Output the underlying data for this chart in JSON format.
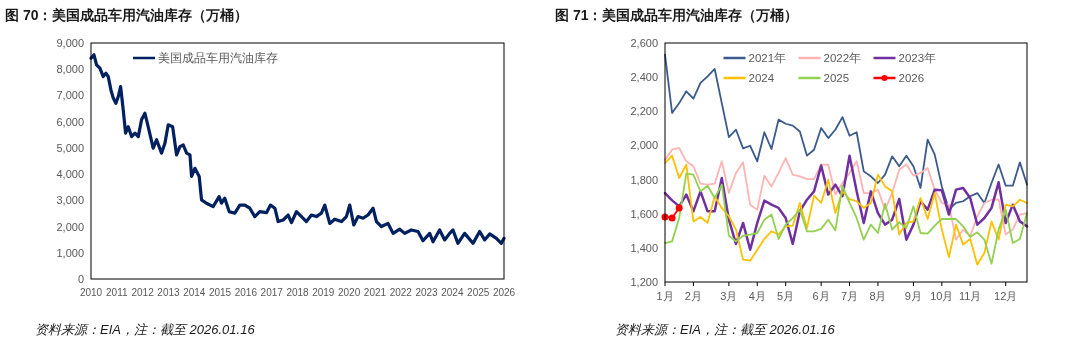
{
  "chart_data": [
    {
      "type": "line",
      "title": "图 70：美国成品车用汽油库存（万桶）",
      "legend": "top left",
      "xlim": [
        "2010",
        "2026"
      ],
      "xticks": [
        "2010",
        "2011",
        "2012",
        "2013",
        "2014",
        "2015",
        "2016",
        "2017",
        "2018",
        "2019",
        "2020",
        "2021",
        "2022",
        "2023",
        "2024",
        "2025",
        "2026"
      ],
      "ylim": [
        0,
        9000
      ],
      "yticks": [
        0,
        {
          "value": 1000,
          "label": "1,000"
        },
        {
          "value": 2000,
          "label": "2,000"
        },
        {
          "value": 3000,
          "label": "3,000"
        },
        {
          "value": 4000,
          "label": "4,000"
        },
        {
          "value": 5000,
          "label": "5,000"
        },
        {
          "value": 6000,
          "label": "6,000"
        },
        {
          "value": 7000,
          "label": "7,000"
        },
        {
          "value": 8000,
          "label": "8,000"
        },
        {
          "value": 9000,
          "label": "9,000"
        }
      ],
      "series": [
        {
          "name": "美国成品车用汽油库存",
          "color": "#002060",
          "x": [
            "2010-01-01",
            "2010-02-12",
            "2010-03-20",
            "2010-05-07",
            "2010-06-23",
            "2010-07-31",
            "2010-09-02",
            "2010-10-10",
            "2010-11-12",
            "2010-12-19",
            "2011-01-22",
            "2011-02-24",
            "2011-04-02",
            "2011-05-05",
            "2011-06-12",
            "2011-07-29",
            "2011-09-15",
            "2011-11-01",
            "2011-12-17",
            "2012-02-03",
            "2012-03-20",
            "2012-05-30",
            "2012-07-17",
            "2012-09-25",
            "2012-11-12",
            "2012-12-29",
            "2013-03-01",
            "2013-04-26",
            "2013-06-12",
            "2013-07-29",
            "2013-09-15",
            "2013-11-01",
            "2013-11-24",
            "2014-01-10",
            "2014-03-12",
            "2014-04-14",
            "2014-06-23",
            "2014-09-25",
            "2014-12-19",
            "2015-01-22",
            "2015-03-09",
            "2015-05-10",
            "2015-07-29",
            "2015-10-08",
            "2015-12-17",
            "2016-02-26",
            "2016-05-07",
            "2016-07-17",
            "2016-10-19",
            "2016-12-15",
            "2017-02-15",
            "2017-04-02",
            "2017-06-12",
            "2017-08-21",
            "2017-10-08",
            "2017-12-17",
            "2018-02-26",
            "2018-05-07",
            "2018-07-17",
            "2018-09-25",
            "2018-12-05",
            "2019-01-22",
            "2019-04-02",
            "2019-06-12",
            "2019-09-15",
            "2019-11-24",
            "2020-01-10",
            "2020-03-07",
            "2020-05-07",
            "2020-07-17",
            "2020-09-25",
            "2020-12-05",
            "2021-01-22",
            "2021-04-02",
            "2021-07-05",
            "2021-09-15",
            "2021-12-17",
            "2022-02-26",
            "2022-05-30",
            "2022-09-02",
            "2022-11-12",
            "2023-02-15",
            "2023-04-02",
            "2023-07-05",
            "2023-09-15",
            "2023-11-24",
            "2024-01-10",
            "2024-03-20",
            "2024-06-23",
            "2024-10-19",
            "2025-01-22",
            "2025-04-02",
            "2025-06-12",
            "2025-09-15",
            "2025-11-24",
            "2026-01-01"
          ],
          "values": [
            8420,
            8550,
            8170,
            8040,
            7720,
            7850,
            7720,
            7210,
            6900,
            6700,
            6960,
            7340,
            6450,
            5560,
            5810,
            5430,
            5560,
            5430,
            6070,
            6320,
            5810,
            4990,
            5310,
            4800,
            5180,
            5880,
            5810,
            4730,
            5050,
            5110,
            4800,
            4730,
            3910,
            4220,
            3910,
            3020,
            2890,
            2760,
            3140,
            2890,
            3080,
            2570,
            2510,
            2820,
            2820,
            2700,
            2380,
            2570,
            2530,
            2820,
            2700,
            2190,
            2250,
            2440,
            2150,
            2570,
            2380,
            2190,
            2440,
            2380,
            2510,
            2820,
            2120,
            2280,
            2190,
            2380,
            2820,
            2060,
            2380,
            2320,
            2440,
            2700,
            2190,
            2000,
            2120,
            1740,
            1900,
            1740,
            1870,
            1810,
            1460,
            1740,
            1420,
            1870,
            1490,
            1740,
            1870,
            1360,
            1740,
            1360,
            1810,
            1490,
            1720,
            1550,
            1360,
            1550
          ]
        }
      ],
      "annotations": [
        "资料来源：EIA，注：截至 2026.01.16"
      ]
    },
    {
      "type": "line",
      "title": "图 71：美国成品车用汽油库存（万桶）",
      "legend": "top",
      "categories": [
        "1月",
        null,
        null,
        null,
        "2月",
        null,
        null,
        null,
        null,
        "3月",
        null,
        null,
        null,
        "4月",
        null,
        null,
        null,
        "5月",
        null,
        null,
        null,
        null,
        "6月",
        null,
        null,
        null,
        "7月",
        null,
        null,
        null,
        "8月",
        null,
        null,
        null,
        null,
        "9月",
        null,
        null,
        null,
        "10月",
        null,
        null,
        null,
        "11月",
        null,
        null,
        null,
        null,
        "12月",
        null,
        null,
        null
      ],
      "ylim": [
        1200,
        2600
      ],
      "yticks": [
        {
          "value": 1200,
          "label": "1,200"
        },
        {
          "value": 1400,
          "label": "1,400"
        },
        {
          "value": 1600,
          "label": "1,600"
        },
        {
          "value": 1800,
          "label": "1,800"
        },
        {
          "value": 2000,
          "label": "2,000"
        },
        {
          "value": 2200,
          "label": "2,200"
        },
        {
          "value": 2400,
          "label": "2,400"
        },
        {
          "value": 2600,
          "label": "2,600"
        }
      ],
      "series": [
        {
          "name": "2021年",
          "color": "#3b5a8c",
          "values": [
            2532,
            2190,
            2248,
            2317,
            2274,
            2366,
            2405,
            2448,
            2248,
            2049,
            2092,
            1983,
            1998,
            1907,
            2077,
            1979,
            2151,
            2127,
            2116,
            2082,
            1940,
            1975,
            2102,
            2043,
            2092,
            2166,
            2057,
            2077,
            1848,
            1819,
            1780,
            1829,
            1936,
            1878,
            1940,
            1878,
            1751,
            2034,
            1946,
            1760,
            1624,
            1663,
            1673,
            1702,
            1721,
            1663,
            1780,
            1888,
            1764,
            1764,
            1901,
            1770
          ]
        },
        {
          "name": "2022年",
          "color": "#ffb3b3",
          "values": [
            1916,
            1975,
            1985,
            1907,
            1878,
            1776,
            1770,
            1776,
            1907,
            1721,
            1839,
            1901,
            1653,
            1624,
            1823,
            1760,
            1839,
            1926,
            1829,
            1819,
            1803,
            1803,
            1888,
            1888,
            1712,
            1780,
            1839,
            1907,
            1721,
            1721,
            1741,
            1624,
            1721,
            1858,
            1888,
            1823,
            1839,
            1868,
            1741,
            1663,
            1653,
            1448,
            1507,
            1468,
            1585,
            1663,
            1682,
            1682,
            1478,
            1507,
            1595,
            1604
          ]
        },
        {
          "name": "2023年",
          "color": "#7030a0",
          "values": [
            1721,
            1678,
            1643,
            1712,
            1614,
            1731,
            1614,
            1614,
            1809,
            1565,
            1423,
            1546,
            1389,
            1546,
            1677,
            1653,
            1634,
            1575,
            1423,
            1614,
            1682,
            1731,
            1882,
            1712,
            1770,
            1702,
            1940,
            1731,
            1546,
            1731,
            1604,
            1536,
            1565,
            1686,
            1448,
            1536,
            1673,
            1624,
            1741,
            1737,
            1595,
            1741,
            1751,
            1692,
            1536,
            1575,
            1634,
            1784,
            1546,
            1653,
            1555,
            1526
          ]
        },
        {
          "name": "2024",
          "color": "#ffc000",
          "values": [
            1897,
            1940,
            1809,
            1887,
            1555,
            1581,
            1546,
            1702,
            1634,
            1585,
            1507,
            1331,
            1325,
            1389,
            1452,
            1497,
            1478,
            1526,
            1530,
            1663,
            1516,
            1706,
            1663,
            1800,
            1604,
            1731,
            1686,
            1673,
            1634,
            1663,
            1829,
            1760,
            1731,
            1478,
            1546,
            1555,
            1692,
            1569,
            1721,
            1507,
            1346,
            1536,
            1419,
            1452,
            1302,
            1370,
            1555,
            1448,
            1653,
            1643,
            1682,
            1663
          ]
        },
        {
          "name": "2025",
          "color": "#92d050",
          "values": [
            1428,
            1438,
            1575,
            1835,
            1829,
            1731,
            1764,
            1692,
            1770,
            1471,
            1438,
            1471,
            1478,
            1487,
            1565,
            1595,
            1452,
            1536,
            1575,
            1624,
            1497,
            1497,
            1511,
            1565,
            1503,
            1764,
            1663,
            1575,
            1448,
            1536,
            1487,
            1659,
            1507,
            1550,
            1516,
            1643,
            1487,
            1483,
            1530,
            1569,
            1569,
            1569,
            1526,
            1464,
            1491,
            1448,
            1307,
            1507,
            1624,
            1428,
            1452,
            1604
          ]
        },
        {
          "name": "2026",
          "color": "#ff0000",
          "marker": "circle",
          "values": [
            1581,
            1575,
            1634,
            null,
            null,
            null,
            null,
            null,
            null,
            null,
            null,
            null,
            null,
            null,
            null,
            null,
            null,
            null,
            null,
            null,
            null,
            null,
            null,
            null,
            null,
            null,
            null,
            null,
            null,
            null,
            null,
            null,
            null,
            null,
            null,
            null,
            null,
            null,
            null,
            null,
            null,
            null,
            null,
            null,
            null,
            null,
            null,
            null,
            null,
            null,
            null,
            null
          ]
        }
      ],
      "annotations": [
        "资料来源：EIA，注：截至 2026.01.16"
      ]
    }
  ]
}
